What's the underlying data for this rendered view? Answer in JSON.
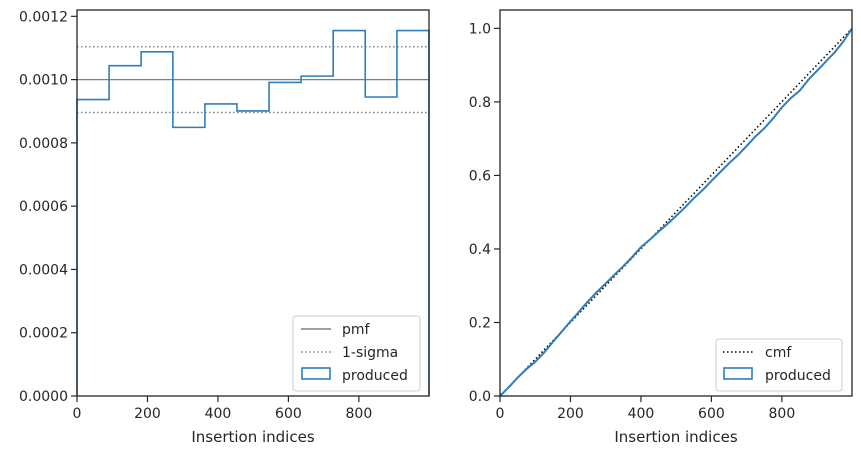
{
  "colors": {
    "produced": "#2e7ebb",
    "pmf": "#808080",
    "sigma": "#808080",
    "cmf": "#000000",
    "axes": "#262626"
  },
  "chart_data": [
    {
      "type": "line",
      "subtype": "histogram-step",
      "title": "",
      "xlabel": "Insertion indices",
      "ylabel": "",
      "xlim": [
        0,
        999
      ],
      "ylim": [
        0,
        0.00122
      ],
      "xticks": [
        0,
        200,
        400,
        600,
        800
      ],
      "xtick_labels": [
        "0",
        "200",
        "400",
        "600",
        "800"
      ],
      "yticks": [
        0,
        0.0002,
        0.0004,
        0.0006,
        0.0008,
        0.001,
        0.0012
      ],
      "ytick_labels": [
        "0.0000",
        "0.0002",
        "0.0004",
        "0.0006",
        "0.0008",
        "0.0010",
        "0.0012"
      ],
      "legend_position": "lower-right",
      "legend": [
        "pmf",
        "1-sigma",
        "produced"
      ],
      "reference_lines": [
        {
          "name": "pmf",
          "y": 0.001,
          "style": "solid"
        },
        {
          "name": "1-sigma",
          "y": 0.001104,
          "style": "dotted"
        },
        {
          "name": "1-sigma",
          "y": 0.000896,
          "style": "dotted"
        }
      ],
      "series": [
        {
          "name": "produced",
          "bin_edges": [
            0,
            91,
            182,
            272,
            363,
            454,
            545,
            636,
            727,
            818,
            908,
            999
          ],
          "values": [
            0.000937,
            0.001044,
            0.001088,
            0.000849,
            0.000923,
            0.000901,
            0.000991,
            0.001011,
            0.001155,
            0.000945,
            0.001155
          ]
        }
      ]
    },
    {
      "type": "line",
      "title": "",
      "xlabel": "Insertion indices",
      "ylabel": "",
      "xlim": [
        0,
        999
      ],
      "ylim": [
        0,
        1.05
      ],
      "xticks": [
        0,
        200,
        400,
        600,
        800
      ],
      "xtick_labels": [
        "0",
        "200",
        "400",
        "600",
        "800"
      ],
      "yticks": [
        0,
        0.2,
        0.4,
        0.6,
        0.8,
        1.0
      ],
      "ytick_labels": [
        "0.0",
        "0.2",
        "0.4",
        "0.6",
        "0.8",
        "1.0"
      ],
      "legend_position": "lower-right",
      "legend": [
        "cmf",
        "produced"
      ],
      "series": [
        {
          "name": "cmf",
          "style": "dotted",
          "x": [
            0,
            999
          ],
          "y": [
            0,
            1.0
          ]
        },
        {
          "name": "produced",
          "x": [
            0,
            25,
            50,
            75,
            100,
            125,
            150,
            175,
            200,
            225,
            250,
            275,
            300,
            325,
            350,
            375,
            400,
            425,
            450,
            475,
            500,
            525,
            550,
            575,
            600,
            625,
            650,
            675,
            700,
            725,
            750,
            775,
            800,
            825,
            850,
            875,
            900,
            925,
            950,
            975,
            999
          ],
          "y": [
            0,
            0.024,
            0.05,
            0.073,
            0.093,
            0.118,
            0.147,
            0.175,
            0.203,
            0.23,
            0.258,
            0.283,
            0.306,
            0.33,
            0.353,
            0.378,
            0.405,
            0.425,
            0.447,
            0.468,
            0.49,
            0.513,
            0.538,
            0.56,
            0.585,
            0.609,
            0.633,
            0.655,
            0.68,
            0.706,
            0.728,
            0.755,
            0.785,
            0.81,
            0.83,
            0.86,
            0.885,
            0.91,
            0.935,
            0.965,
            1.0
          ]
        }
      ]
    }
  ]
}
